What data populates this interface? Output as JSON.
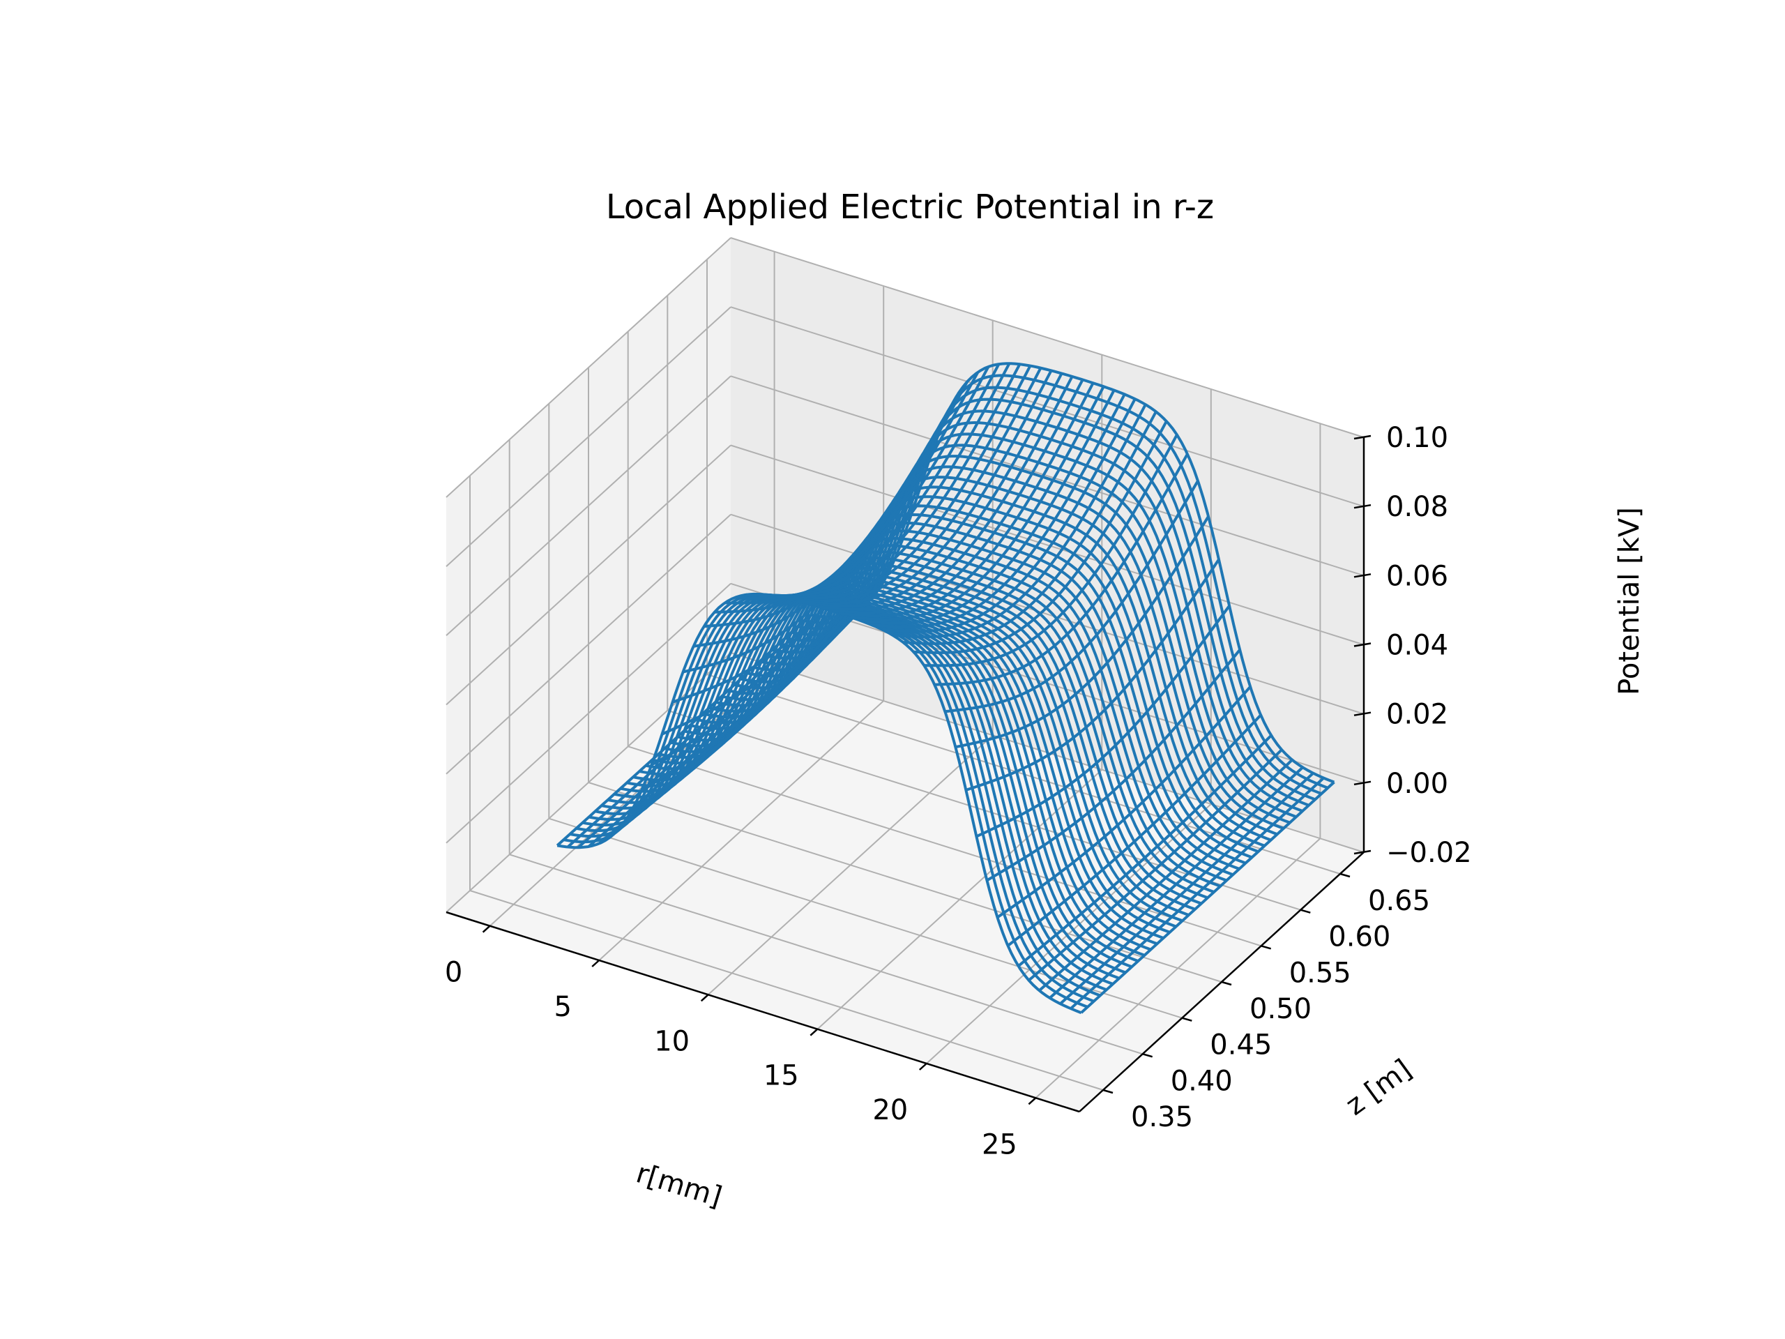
{
  "chart_data": {
    "type": "surface-wireframe",
    "title": "Local Applied Electric Potential in r-z",
    "xlabel": "r[mm]",
    "ylabel": "z [m]",
    "zlabel": "Potential [kV]",
    "xlim": [
      -2,
      27
    ],
    "ylim": [
      0.32,
      0.68
    ],
    "zlim": [
      -0.02,
      0.1
    ],
    "x_ticks": [
      "0",
      "5",
      "10",
      "15",
      "20",
      "25"
    ],
    "y_ticks": [
      "0.35",
      "0.40",
      "0.45",
      "0.50",
      "0.55",
      "0.60",
      "0.65"
    ],
    "z_ticks": [
      "−0.02",
      "0.00",
      "0.02",
      "0.04",
      "0.06",
      "0.08",
      "0.10"
    ],
    "surface": {
      "r_range": [
        2,
        26
      ],
      "z_range": [
        0.35,
        0.67
      ],
      "potential_peak_kV": 0.094,
      "potential_at_r0_kV": 0.0,
      "potential_at_rmax_kV": 0.0,
      "grid_lines_r": 50,
      "grid_lines_z": 40
    },
    "grid": true,
    "colors": {
      "surface": "#1f77b4",
      "pane_left": "#f2f2f2",
      "pane_back": "#ebebeb",
      "pane_floor": "#f5f5f5",
      "grid": "#b0b0b0"
    }
  }
}
